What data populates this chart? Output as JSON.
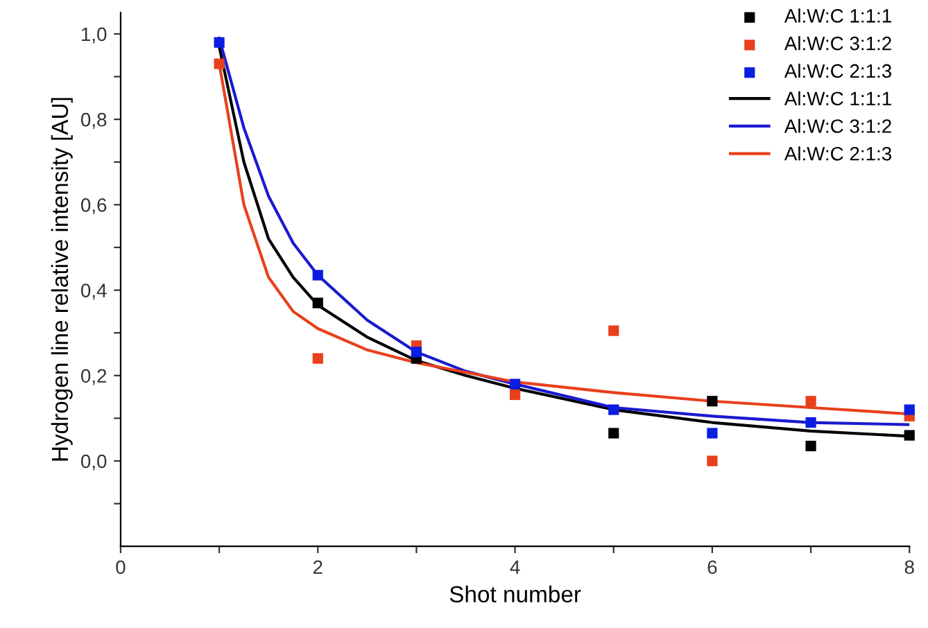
{
  "chart_data": {
    "type": "scatter",
    "xlabel": "Shot number",
    "ylabel": "Hydrogen line relative intensity [AU]",
    "xlim": [
      0,
      8
    ],
    "ylim": [
      -0.2,
      1.05
    ],
    "xticks": [
      0,
      {
        "value": 1,
        "label": null
      },
      2,
      {
        "value": 3,
        "label": null
      },
      4,
      {
        "value": 5,
        "label": null
      },
      6,
      {
        "value": 7,
        "label": null
      },
      8
    ],
    "yticks": [
      {
        "value": -0.1,
        "label": null
      },
      {
        "value": 0,
        "label": "0,0"
      },
      {
        "value": 0.1,
        "label": null
      },
      {
        "value": 0.2,
        "label": "0,2"
      },
      {
        "value": 0.3,
        "label": null
      },
      {
        "value": 0.4,
        "label": "0,4"
      },
      {
        "value": 0.5,
        "label": null
      },
      {
        "value": 0.6,
        "label": "0,6"
      },
      {
        "value": 0.7,
        "label": null
      },
      {
        "value": 0.8,
        "label": "0,8"
      },
      {
        "value": 0.9,
        "label": null
      },
      {
        "value": 1.0,
        "label": "1,0"
      }
    ],
    "legend": "top right",
    "grid": false,
    "series": [
      {
        "name": "Al:W:C 1:1:1",
        "marker": "square",
        "color": "#000000",
        "x": [
          2,
          3,
          5,
          6,
          7,
          8
        ],
        "values": [
          0.37,
          0.24,
          0.065,
          0.14,
          0.035,
          0.06
        ]
      },
      {
        "name": "Al:W:C 3:1:2",
        "marker": "square",
        "color": "#e8401c",
        "x": [
          1,
          2,
          3,
          4,
          5,
          6,
          7,
          8
        ],
        "values": [
          0.93,
          0.24,
          0.27,
          0.155,
          0.305,
          0.0,
          0.14,
          0.105
        ]
      },
      {
        "name": "Al:W:C 2:1:3",
        "marker": "square",
        "color": "#0a1ee0",
        "x": [
          1,
          2,
          3,
          4,
          5,
          6,
          7,
          8
        ],
        "values": [
          0.98,
          0.435,
          0.255,
          0.18,
          0.12,
          0.065,
          0.09,
          0.12
        ]
      },
      {
        "name": "Al:W:C 1:1:1",
        "type": "line",
        "marker": "none",
        "color": "#000000",
        "x": [
          1,
          1.25,
          1.5,
          1.75,
          2,
          2.5,
          3,
          3.5,
          4,
          5,
          6,
          7,
          8
        ],
        "values": [
          0.97,
          0.7,
          0.52,
          0.43,
          0.365,
          0.29,
          0.235,
          0.2,
          0.17,
          0.12,
          0.09,
          0.07,
          0.058
        ]
      },
      {
        "name": "Al:W:C 3:1:2",
        "type": "line",
        "marker": "none",
        "color": "#1a1ad0",
        "x": [
          1,
          1.25,
          1.5,
          1.75,
          2,
          2.5,
          3,
          3.5,
          4,
          5,
          6,
          7,
          8
        ],
        "values": [
          0.99,
          0.78,
          0.62,
          0.51,
          0.435,
          0.33,
          0.255,
          0.21,
          0.18,
          0.125,
          0.105,
          0.09,
          0.085
        ]
      },
      {
        "name": "Al:W:C 2:1:3",
        "type": "line",
        "marker": "none",
        "color": "#e8401c",
        "x": [
          1,
          1.25,
          1.5,
          1.75,
          2,
          2.5,
          3,
          4,
          5,
          6,
          7,
          8
        ],
        "values": [
          0.93,
          0.6,
          0.43,
          0.35,
          0.31,
          0.26,
          0.23,
          0.185,
          0.16,
          0.14,
          0.125,
          0.11
        ]
      }
    ]
  }
}
